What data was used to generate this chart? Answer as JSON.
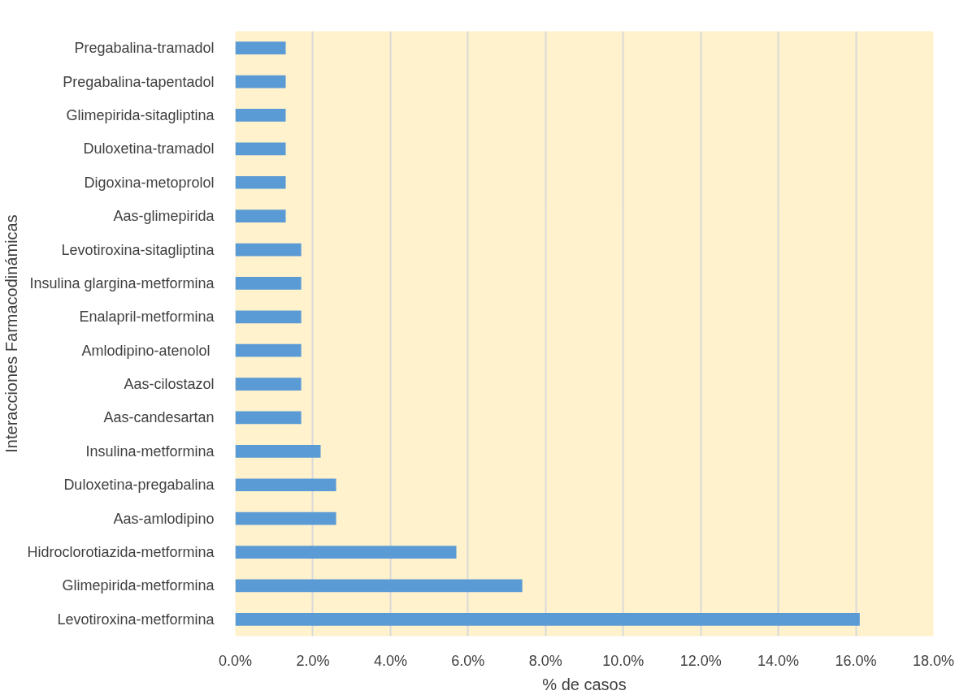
{
  "chart_data": {
    "type": "bar",
    "orientation": "horizontal",
    "xlabel": "% de casos",
    "ylabel": "Interacciones Farmacodinámicas",
    "categories": [
      "Pregabalina-tramadol",
      "Pregabalina-tapentadol",
      "Glimepirida-sitagliptina",
      "Duloxetina-tramadol",
      "Digoxina-metoprolol",
      "Aas-glimepirida",
      "Levotiroxina-sitagliptina",
      "Insulina glargina-metformina",
      "Enalapril-metformina",
      "Amlodipino-atenolol ",
      "Aas-cilostazol",
      "Aas-candesartan",
      "Insulina-metformina",
      "Duloxetina-pregabalina",
      "Aas-amlodipino",
      "Hidroclorotiazida-metformina",
      "Glimepirida-metformina",
      "Levotiroxina-metformina"
    ],
    "values": [
      1.3,
      1.3,
      1.3,
      1.3,
      1.3,
      1.3,
      1.7,
      1.7,
      1.7,
      1.7,
      1.7,
      1.7,
      2.2,
      2.6,
      2.6,
      5.7,
      7.4,
      16.1
    ],
    "color": "#5b9bd5",
    "xlim": [
      0,
      18
    ],
    "xticks": [
      {
        "value": 0,
        "label": "0.0%"
      },
      {
        "value": 2,
        "label": "2.0%"
      },
      {
        "value": 4,
        "label": "4.0%"
      },
      {
        "value": 6,
        "label": "6.0%"
      },
      {
        "value": 8,
        "label": "8.0%"
      },
      {
        "value": 10,
        "label": "10.0%"
      },
      {
        "value": 12,
        "label": "12.0%"
      },
      {
        "value": 14,
        "label": "14.0%"
      },
      {
        "value": 16,
        "label": "16.0%"
      },
      {
        "value": 18,
        "label": "18.0%"
      }
    ],
    "grid": "x"
  }
}
